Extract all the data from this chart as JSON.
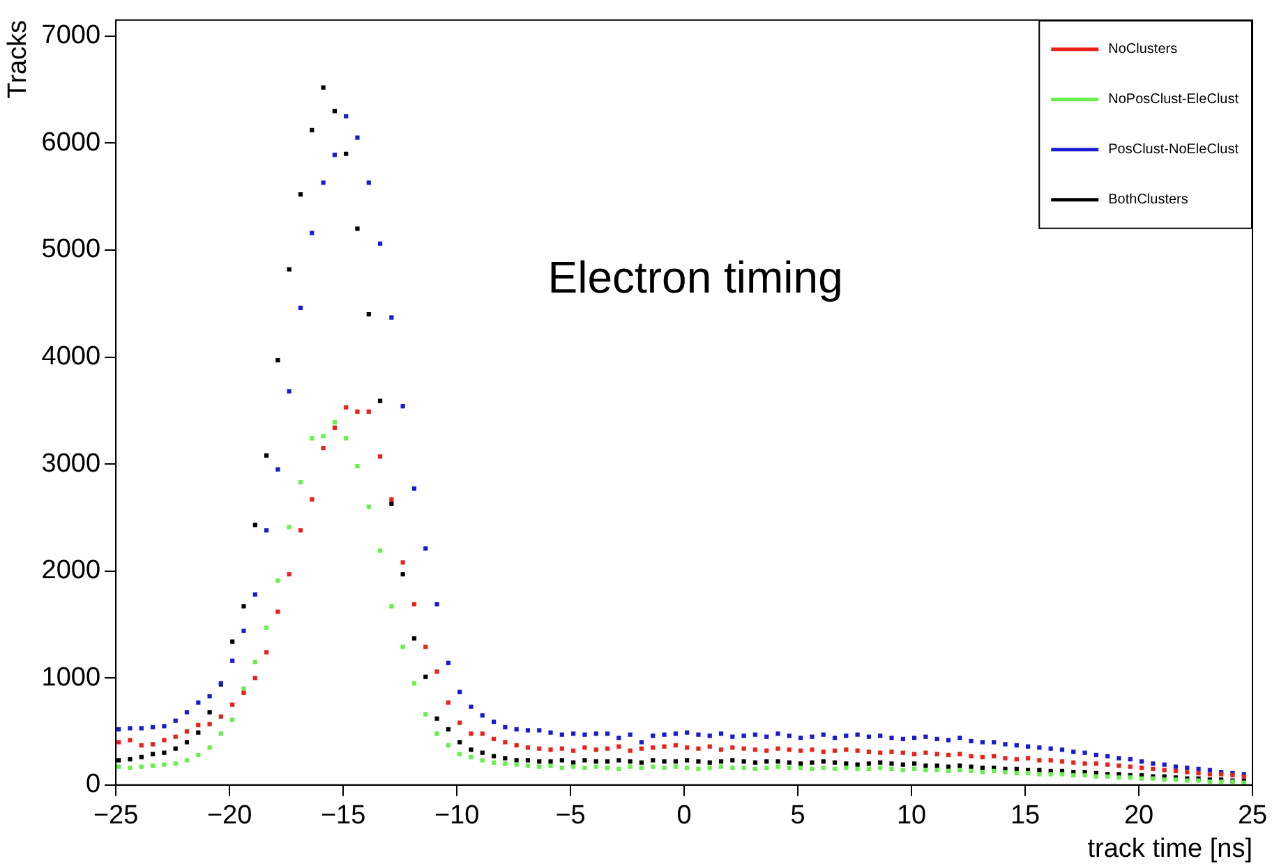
{
  "chart_data": {
    "type": "scatter",
    "xlabel": "track time [ns]",
    "ylabel": "Tracks",
    "annotations": [
      "Electron timing"
    ],
    "xlim": [
      -25,
      25
    ],
    "xticks": [
      -25,
      -20,
      -15,
      -10,
      -5,
      0,
      5,
      10,
      15,
      20,
      25
    ],
    "ylim": [
      0,
      7150
    ],
    "yticks": [
      0,
      1000,
      2000,
      3000,
      4000,
      5000,
      6000,
      7000
    ],
    "grid": false,
    "legend": "top right",
    "marker": "square",
    "x": [
      -24.875,
      -24.375,
      -23.875,
      -23.375,
      -22.875,
      -22.375,
      -21.875,
      -21.375,
      -20.875,
      -20.375,
      -19.875,
      -19.375,
      -18.875,
      -18.375,
      -17.875,
      -17.375,
      -16.875,
      -16.375,
      -15.875,
      -15.375,
      -14.875,
      -14.375,
      -13.875,
      -13.375,
      -12.875,
      -12.375,
      -11.875,
      -11.375,
      -10.875,
      -10.375,
      -9.875,
      -9.375,
      -8.875,
      -8.375,
      -7.875,
      -7.375,
      -6.875,
      -6.375,
      -5.875,
      -5.375,
      -4.875,
      -4.375,
      -3.875,
      -3.375,
      -2.875,
      -2.375,
      -1.875,
      -1.375,
      -0.875,
      -0.375,
      0.125,
      0.625,
      1.125,
      1.625,
      2.125,
      2.625,
      3.125,
      3.625,
      4.125,
      4.625,
      5.125,
      5.625,
      6.125,
      6.625,
      7.125,
      7.625,
      8.125,
      8.625,
      9.125,
      9.625,
      10.125,
      10.625,
      11.125,
      11.625,
      12.125,
      12.625,
      13.125,
      13.625,
      14.125,
      14.625,
      15.125,
      15.625,
      16.125,
      16.625,
      17.125,
      17.625,
      18.125,
      18.625,
      19.125,
      19.625,
      20.125,
      20.625,
      21.125,
      21.625,
      22.125,
      22.625,
      23.125,
      23.625,
      24.125,
      24.625
    ],
    "series": [
      {
        "name": "NoClusters",
        "color": "#e8231a",
        "values": [
          400,
          420,
          370,
          380,
          420,
          450,
          500,
          560,
          570,
          640,
          750,
          860,
          1000,
          1240,
          1620,
          1970,
          2380,
          2670,
          3150,
          3340,
          3530,
          3490,
          3490,
          3070,
          2670,
          2080,
          1690,
          1290,
          1060,
          770,
          580,
          480,
          480,
          430,
          400,
          370,
          350,
          340,
          330,
          340,
          320,
          350,
          330,
          340,
          360,
          320,
          340,
          350,
          360,
          370,
          350,
          340,
          360,
          330,
          350,
          340,
          330,
          320,
          340,
          330,
          320,
          330,
          310,
          320,
          330,
          320,
          310,
          300,
          310,
          300,
          290,
          300,
          290,
          280,
          290,
          270,
          260,
          270,
          250,
          240,
          250,
          230,
          230,
          220,
          210,
          200,
          200,
          190,
          180,
          170,
          160,
          150,
          140,
          130,
          120,
          110,
          100,
          100,
          90,
          80
        ]
      },
      {
        "name": "NoPosClust-EleClust",
        "color": "#66f04a",
        "values": [
          170,
          160,
          170,
          180,
          190,
          200,
          230,
          280,
          350,
          480,
          610,
          900,
          1150,
          1470,
          1910,
          2410,
          2830,
          3240,
          3260,
          3390,
          3240,
          2980,
          2600,
          2190,
          1670,
          1290,
          950,
          660,
          480,
          370,
          290,
          260,
          230,
          210,
          200,
          190,
          180,
          170,
          180,
          160,
          170,
          160,
          170,
          160,
          150,
          170,
          160,
          170,
          160,
          170,
          160,
          150,
          160,
          170,
          160,
          160,
          150,
          160,
          170,
          160,
          160,
          150,
          160,
          150,
          160,
          150,
          150,
          160,
          150,
          140,
          150,
          140,
          140,
          130,
          140,
          130,
          120,
          130,
          120,
          110,
          110,
          100,
          100,
          100,
          90,
          90,
          80,
          80,
          70,
          70,
          60,
          60,
          50,
          50,
          40,
          40,
          30,
          30,
          30,
          20
        ]
      },
      {
        "name": "PosClust-NoEleClust",
        "color": "#1a1ad0",
        "values": [
          520,
          530,
          530,
          540,
          550,
          600,
          680,
          770,
          830,
          950,
          1160,
          1440,
          1780,
          2380,
          2950,
          3680,
          4460,
          5160,
          5630,
          5890,
          6250,
          6050,
          5630,
          5060,
          4370,
          3540,
          2770,
          2210,
          1690,
          1140,
          870,
          730,
          650,
          590,
          540,
          520,
          510,
          510,
          490,
          470,
          480,
          470,
          480,
          480,
          440,
          470,
          400,
          460,
          470,
          480,
          490,
          470,
          460,
          480,
          450,
          460,
          470,
          450,
          480,
          460,
          440,
          450,
          470,
          440,
          460,
          470,
          450,
          460,
          440,
          430,
          440,
          450,
          430,
          420,
          440,
          410,
          400,
          400,
          380,
          370,
          360,
          350,
          340,
          330,
          310,
          300,
          280,
          270,
          250,
          240,
          220,
          200,
          190,
          170,
          160,
          150,
          140,
          120,
          110,
          100
        ]
      },
      {
        "name": "BothClusters",
        "color": "#000000",
        "values": [
          230,
          240,
          260,
          290,
          300,
          340,
          400,
          490,
          680,
          940,
          1340,
          1670,
          2430,
          3080,
          3970,
          4820,
          5520,
          6120,
          6520,
          6300,
          5900,
          5200,
          4400,
          3590,
          2630,
          1970,
          1370,
          1010,
          620,
          520,
          400,
          330,
          300,
          270,
          250,
          230,
          230,
          220,
          220,
          230,
          210,
          230,
          220,
          220,
          230,
          220,
          210,
          230,
          220,
          220,
          230,
          220,
          210,
          220,
          230,
          220,
          210,
          220,
          220,
          210,
          200,
          210,
          220,
          210,
          200,
          190,
          200,
          210,
          200,
          190,
          200,
          180,
          180,
          170,
          180,
          170,
          160,
          160,
          150,
          150,
          140,
          140,
          130,
          130,
          120,
          120,
          110,
          100,
          100,
          90,
          90,
          80,
          80,
          70,
          60,
          60,
          50,
          50,
          40,
          40
        ]
      }
    ]
  }
}
